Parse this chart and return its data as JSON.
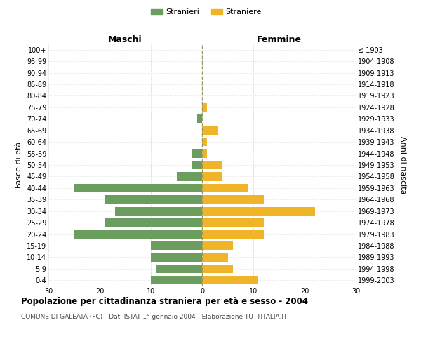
{
  "age_groups": [
    "0-4",
    "5-9",
    "10-14",
    "15-19",
    "20-24",
    "25-29",
    "30-34",
    "35-39",
    "40-44",
    "45-49",
    "50-54",
    "55-59",
    "60-64",
    "65-69",
    "70-74",
    "75-79",
    "80-84",
    "85-89",
    "90-94",
    "95-99",
    "100+"
  ],
  "birth_years": [
    "1999-2003",
    "1994-1998",
    "1989-1993",
    "1984-1988",
    "1979-1983",
    "1974-1978",
    "1969-1973",
    "1964-1968",
    "1959-1963",
    "1954-1958",
    "1949-1953",
    "1944-1948",
    "1939-1943",
    "1934-1938",
    "1929-1933",
    "1924-1928",
    "1919-1923",
    "1914-1918",
    "1909-1913",
    "1904-1908",
    "≤ 1903"
  ],
  "males": [
    10,
    9,
    10,
    10,
    25,
    19,
    17,
    19,
    25,
    5,
    2,
    2,
    0,
    0,
    1,
    0,
    0,
    0,
    0,
    0,
    0
  ],
  "females": [
    11,
    6,
    5,
    6,
    12,
    12,
    22,
    12,
    9,
    4,
    4,
    1,
    1,
    3,
    0,
    1,
    0,
    0,
    0,
    0,
    0
  ],
  "male_color": "#6b9e5e",
  "female_color": "#f0b429",
  "grid_color": "#cccccc",
  "center_line_color": "#999966",
  "background_color": "#ffffff",
  "title": "Popolazione per cittadinanza straniera per età e sesso - 2004",
  "subtitle": "COMUNE DI GALEATA (FC) - Dati ISTAT 1° gennaio 2004 - Elaborazione TUTTITALIA.IT",
  "xlabel_left": "Maschi",
  "xlabel_right": "Femmine",
  "ylabel_left": "Fasce di età",
  "ylabel_right": "Anni di nascita",
  "legend_male": "Stranieri",
  "legend_female": "Straniere",
  "xlim": 30
}
